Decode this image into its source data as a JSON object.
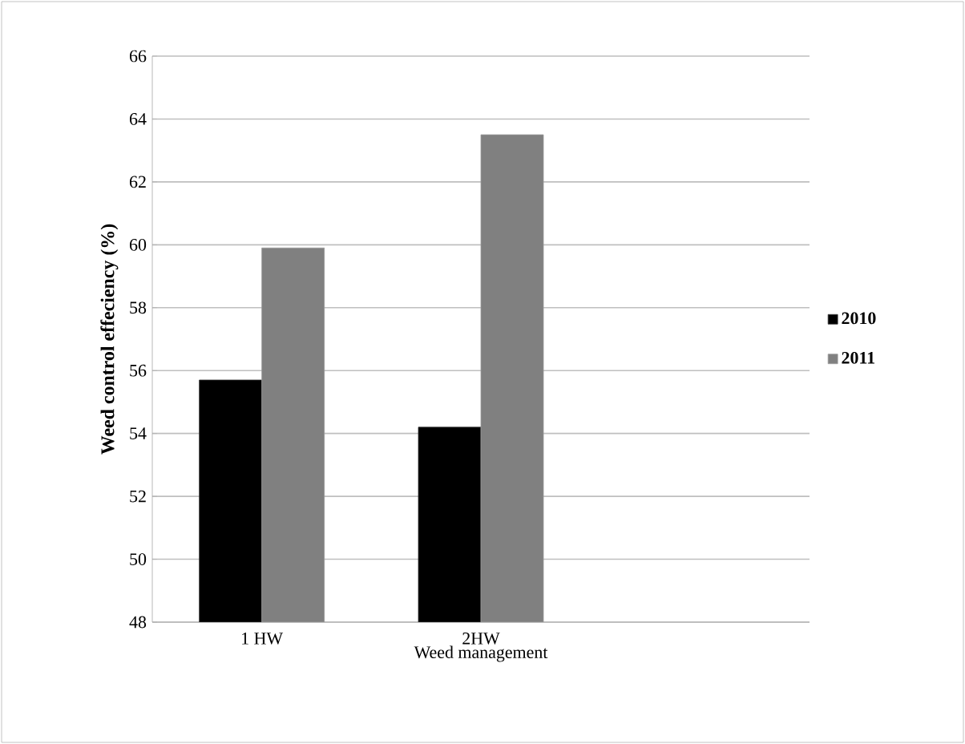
{
  "chart_data": {
    "type": "bar",
    "xlabel": "Weed management",
    "ylabel": "Weed  control effeciency (%)",
    "categories": [
      "1 HW",
      "2HW",
      null
    ],
    "series": [
      {
        "name": "2010",
        "color": "#000000",
        "values": [
          55.7,
          54.2,
          null
        ]
      },
      {
        "name": "2011",
        "color": "#808080",
        "values": [
          59.9,
          63.5,
          null
        ]
      }
    ],
    "ylim": [
      48,
      66
    ],
    "yticks": [
      48,
      50,
      52,
      54,
      56,
      58,
      60,
      62,
      64,
      66
    ],
    "grid": "y",
    "legend": "right"
  }
}
